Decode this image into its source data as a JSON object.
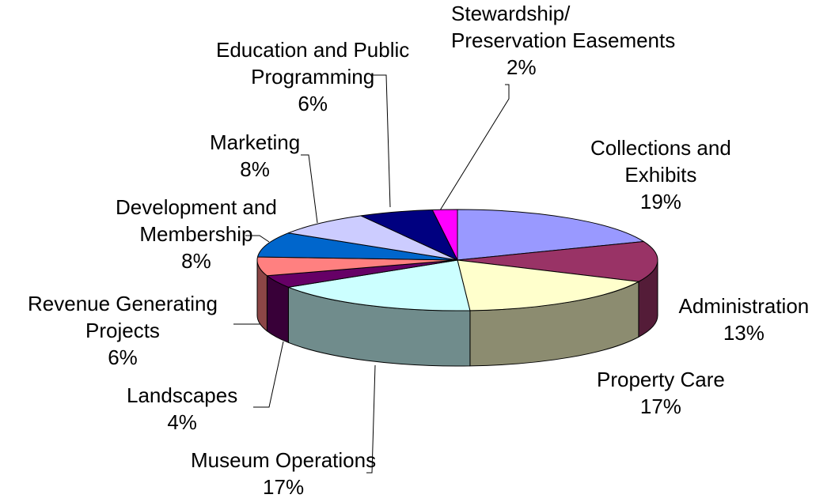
{
  "chart_data": {
    "type": "pie3d",
    "categories": [
      "Collections and\nExhibits",
      "Administration",
      "Property Care",
      "Museum Operations",
      "Landscapes",
      "Revenue Generating\nProjects",
      "Development and\nMembership",
      "Marketing",
      "Education and Public\nProgramming",
      "Stewardship/\nPreservation Easements"
    ],
    "values": [
      19,
      13,
      17,
      17,
      4,
      6,
      8,
      8,
      6,
      2
    ],
    "value_labels": [
      "19%",
      "13%",
      "17%",
      "17%",
      "4%",
      "6%",
      "8%",
      "8%",
      "6%",
      "2%"
    ],
    "colors": [
      "#9999ff",
      "#993366",
      "#ffffcc",
      "#ccffff",
      "#660066",
      "#ff8080",
      "#0066cc",
      "#ccccff",
      "#000080",
      "#ff00ff"
    ]
  }
}
